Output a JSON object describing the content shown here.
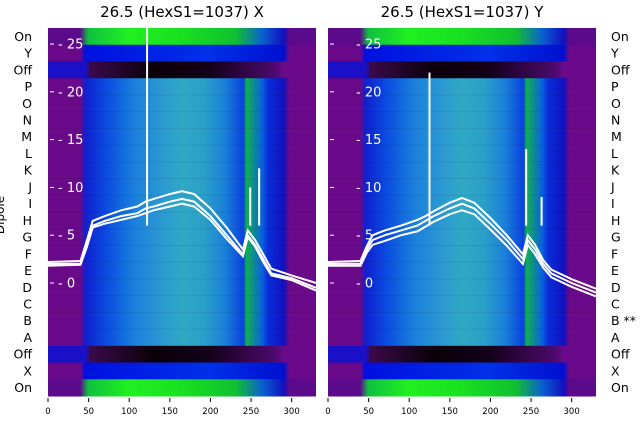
{
  "chart_data": [
    {
      "type": "heatmap",
      "title": "26.5 (HexS1=1037) X",
      "ylabel": "Dipole",
      "xlim": [
        0,
        330
      ],
      "xticks": [
        0,
        50,
        100,
        150,
        200,
        250,
        300
      ],
      "rows": [
        "On",
        "Y",
        "Off",
        "P",
        "O",
        "N",
        "M",
        "L",
        "K",
        "J",
        "I",
        "H",
        "G",
        "F",
        "E",
        "D",
        "C",
        "B",
        "A",
        "Off",
        "X",
        "On"
      ],
      "overlay_yticks": [
        0,
        5,
        10,
        15,
        20,
        25
      ],
      "overlay_ylim": [
        -5,
        28
      ],
      "spikes": [
        {
          "x": 122,
          "y": 28
        },
        {
          "x": 249,
          "y": 10
        },
        {
          "x": 260,
          "y": 12
        }
      ],
      "series": [
        {
          "values_x": [
            0,
            40,
            48,
            55,
            70,
            90,
            110,
            120,
            130,
            150,
            165,
            180,
            200,
            220,
            240,
            246,
            255,
            265,
            275,
            300,
            330
          ],
          "values_y": [
            2,
            2,
            4,
            6,
            6.5,
            7,
            7.3,
            7.8,
            8,
            8.5,
            8.8,
            8.5,
            7,
            5,
            3,
            5,
            4,
            2.5,
            1,
            0.5,
            -0.5
          ]
        },
        {
          "values_x": [
            0,
            40,
            48,
            55,
            70,
            90,
            110,
            120,
            130,
            150,
            165,
            180,
            200,
            220,
            240,
            246,
            255,
            265,
            275,
            300,
            330
          ],
          "values_y": [
            2.2,
            2.3,
            4.5,
            6.5,
            7,
            7.6,
            8,
            8.5,
            8.8,
            9.3,
            9.6,
            9.3,
            7.8,
            5.8,
            3.5,
            5.5,
            4.5,
            3,
            1.5,
            0.8,
            0
          ]
        },
        {
          "values_x": [
            0,
            40,
            48,
            55,
            70,
            90,
            110,
            120,
            130,
            150,
            165,
            180,
            200,
            220,
            240,
            246,
            255,
            265,
            275,
            300,
            330
          ],
          "values_y": [
            1.8,
            1.9,
            3.8,
            5.8,
            6.2,
            6.6,
            7,
            7.3,
            7.6,
            8,
            8.3,
            8,
            6.6,
            4.6,
            2.8,
            4.8,
            3.8,
            2.2,
            0.8,
            0.3,
            -0.8
          ]
        }
      ]
    },
    {
      "type": "heatmap",
      "title": "26.5 (HexS1=1037) Y",
      "xlim": [
        0,
        330
      ],
      "xticks": [
        0,
        50,
        100,
        150,
        200,
        250,
        300
      ],
      "rows": [
        "On",
        "Y",
        "Off",
        "P",
        "O",
        "N",
        "M",
        "L",
        "K",
        "J",
        "I",
        "H",
        "G",
        "F",
        "E",
        "D",
        "C",
        "B **",
        "A",
        "Off",
        "X",
        "On"
      ],
      "overlay_yticks": [
        0,
        5,
        10,
        15,
        20,
        25
      ],
      "overlay_ylim": [
        -5,
        28
      ],
      "spikes": [
        {
          "x": 125,
          "y": 22
        },
        {
          "x": 244,
          "y": 14
        },
        {
          "x": 263,
          "y": 9
        }
      ],
      "series": [
        {
          "values_x": [
            0,
            40,
            48,
            55,
            70,
            90,
            110,
            120,
            130,
            150,
            165,
            180,
            200,
            220,
            240,
            246,
            255,
            265,
            275,
            300,
            330
          ],
          "values_y": [
            2,
            2,
            3.5,
            4.5,
            5,
            5.5,
            6,
            6.5,
            7,
            7.8,
            8.3,
            7.8,
            6.2,
            4.5,
            2.5,
            4.5,
            3.5,
            2,
            1,
            0,
            -1
          ]
        },
        {
          "values_x": [
            0,
            40,
            48,
            55,
            70,
            90,
            110,
            120,
            130,
            150,
            165,
            180,
            200,
            220,
            240,
            246,
            255,
            265,
            275,
            300,
            330
          ],
          "values_y": [
            2.2,
            2.3,
            3.9,
            5,
            5.5,
            6,
            6.6,
            7,
            7.5,
            8.4,
            8.9,
            8.4,
            6.8,
            5,
            3,
            5,
            4,
            2.4,
            1.4,
            0.4,
            -0.6
          ]
        },
        {
          "values_x": [
            0,
            40,
            48,
            55,
            70,
            90,
            110,
            120,
            130,
            150,
            165,
            180,
            200,
            220,
            240,
            246,
            255,
            265,
            275,
            300,
            330
          ],
          "values_y": [
            1.8,
            1.8,
            3.2,
            4,
            4.4,
            5,
            5.4,
            5.9,
            6.4,
            7.2,
            7.6,
            7.2,
            5.6,
            3.9,
            2,
            4,
            3,
            1.6,
            0.6,
            -0.4,
            -1.4
          ]
        }
      ]
    }
  ]
}
